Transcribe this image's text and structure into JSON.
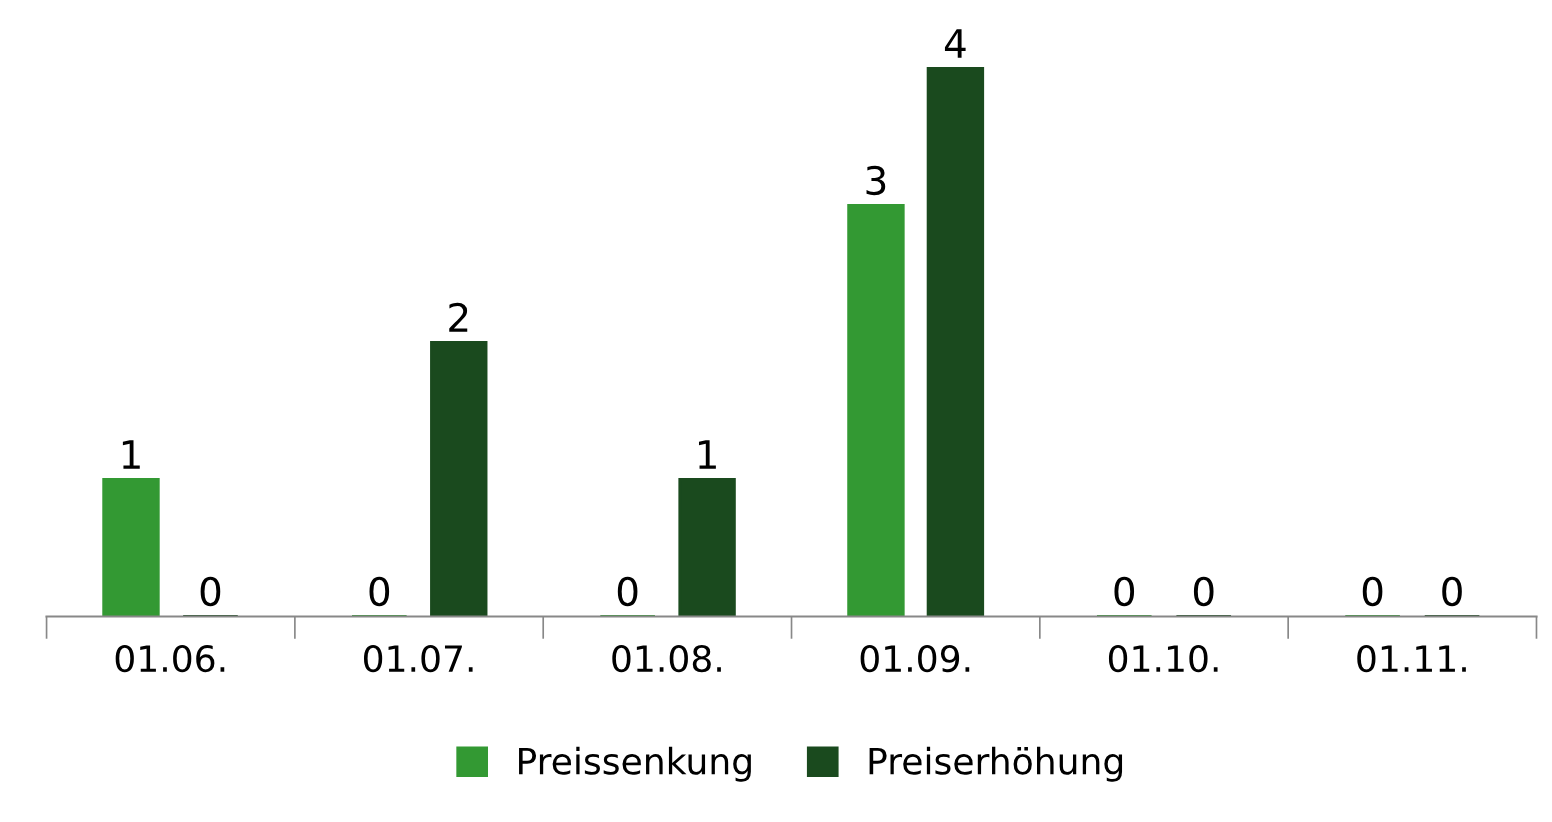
{
  "chart_data": {
    "type": "bar",
    "categories": [
      "01.06.",
      "01.07.",
      "01.08.",
      "01.09.",
      "01.10.",
      "01.11."
    ],
    "series": [
      {
        "name": "Preissenkung",
        "color": "#339933",
        "values": [
          1,
          0,
          0,
          3,
          0,
          0
        ]
      },
      {
        "name": "Preiserhöhung",
        "color": "#1a4a1e",
        "values": [
          0,
          2,
          1,
          4,
          0,
          0
        ]
      }
    ],
    "data_labels": true,
    "legend": "bottom",
    "grid": false
  }
}
